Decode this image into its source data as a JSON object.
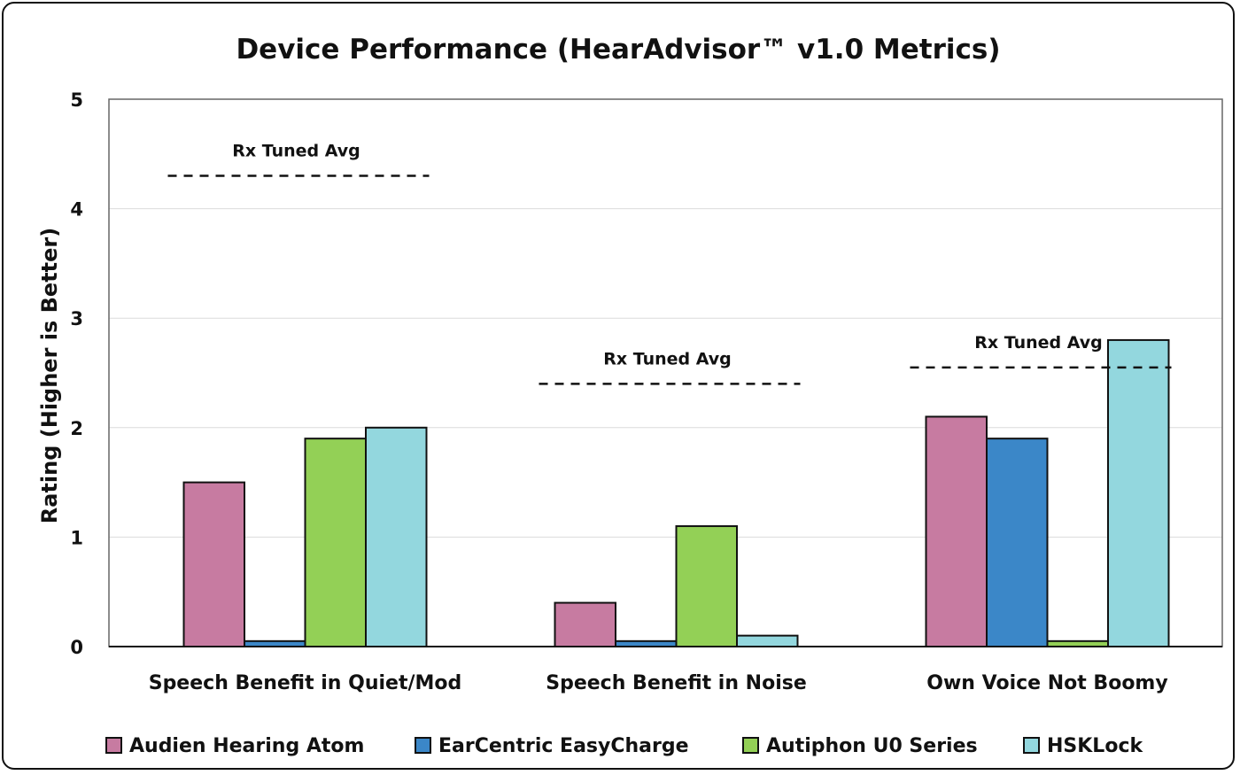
{
  "chart_data": {
    "type": "bar",
    "title": "Device Performance (HearAdvisor™ v1.0 Metrics)",
    "xlabel": "",
    "ylabel": "Rating (Higher is Better)",
    "ylim": [
      0,
      5
    ],
    "yticks": [
      "0",
      "1",
      "2",
      "3",
      "4",
      "5"
    ],
    "grid": true,
    "legend_position": "bottom",
    "categories": [
      "Speech Benefit in Quiet/Mod",
      "Speech Benefit in Noise",
      "Own Voice Not Boomy"
    ],
    "series": [
      {
        "name": "Audien Hearing Atom",
        "color": "#c77ba1",
        "values": [
          1.5,
          0.4,
          2.1
        ]
      },
      {
        "name": "EarCentric EasyCharge",
        "color": "#3b87c8",
        "values": [
          0.05,
          0.05,
          1.9
        ]
      },
      {
        "name": "Autiphon U0 Series",
        "color": "#93d056",
        "values": [
          1.9,
          1.1,
          0.05
        ]
      },
      {
        "name": "HSKLock",
        "color": "#93d7de",
        "values": [
          2.0,
          0.1,
          2.8
        ]
      }
    ],
    "annotations": [
      {
        "text": "Rx Tuned Avg",
        "category": 0,
        "value": 4.3
      },
      {
        "text": "Rx Tuned Avg",
        "category": 1,
        "value": 2.4
      },
      {
        "text": "Rx Tuned Avg",
        "category": 2,
        "value": 2.55
      }
    ]
  }
}
